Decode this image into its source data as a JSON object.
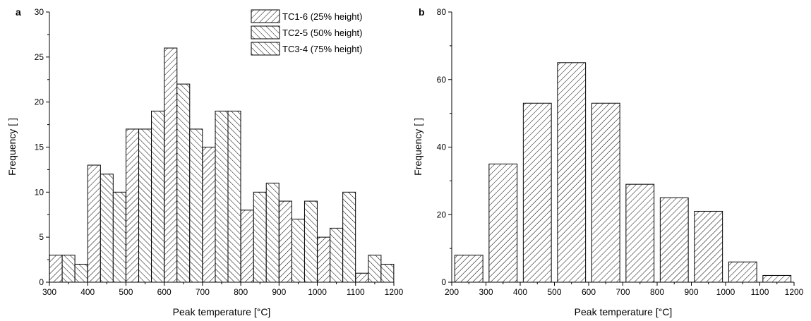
{
  "chart_data": [
    {
      "type": "bar",
      "panel_label": "a",
      "xlabel": "Peak temperature [°C]",
      "ylabel": "Frequency [ ]",
      "xlim": [
        300,
        1200
      ],
      "ylim": [
        0,
        30
      ],
      "x_ticks": [
        300,
        400,
        500,
        600,
        700,
        800,
        900,
        1000,
        1100,
        1200
      ],
      "y_ticks": [
        0,
        5,
        10,
        15,
        20,
        25,
        30
      ],
      "bin_width": 100,
      "bin_starts": [
        300,
        400,
        500,
        600,
        700,
        800,
        900,
        1000,
        1100
      ],
      "legend_position": "top-right",
      "series": [
        {
          "name": "TC1-6 (25% height)",
          "hatch": "forward",
          "values": [
            3,
            13,
            17,
            26,
            15,
            8,
            9,
            5,
            1
          ]
        },
        {
          "name": "TC2-5 (50% height)",
          "hatch": "backward",
          "values": [
            3,
            12,
            17,
            22,
            19,
            10,
            7,
            6,
            3
          ]
        },
        {
          "name": "TC3-4 (75% height)",
          "hatch": "backward",
          "values": [
            2,
            10,
            19,
            17,
            19,
            11,
            9,
            10,
            2
          ]
        }
      ]
    },
    {
      "type": "bar",
      "panel_label": "b",
      "xlabel": "Peak temperature [°C]",
      "ylabel": "Frequency [ ]",
      "xlim": [
        200,
        1200
      ],
      "ylim": [
        0,
        80
      ],
      "x_ticks": [
        200,
        300,
        400,
        500,
        600,
        700,
        800,
        900,
        1000,
        1100,
        1200
      ],
      "y_ticks": [
        0,
        20,
        40,
        60,
        80
      ],
      "bin_width": 100,
      "bin_starts": [
        200,
        300,
        400,
        500,
        600,
        700,
        800,
        900,
        1000,
        1100
      ],
      "series": [
        {
          "hatch": "forward",
          "values": [
            8,
            35,
            53,
            65,
            53,
            29,
            25,
            21,
            6,
            2
          ]
        }
      ]
    }
  ]
}
